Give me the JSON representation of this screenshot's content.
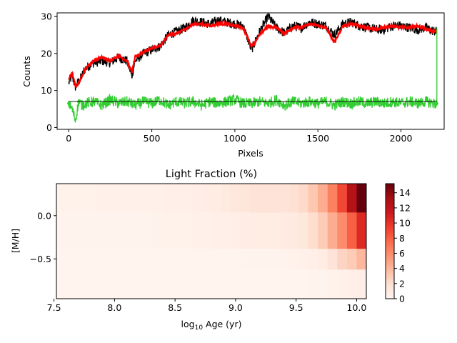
{
  "chart_data": [
    {
      "type": "line",
      "title": "",
      "xlabel": "Pixels",
      "ylabel": "Counts",
      "xlim": [
        -70,
        2260
      ],
      "ylim": [
        -0.5,
        31
      ],
      "xticks": [
        0,
        500,
        1000,
        1500,
        2000
      ],
      "yticks": [
        0,
        10,
        20,
        30
      ],
      "grid": false,
      "legend": "none",
      "series": [
        {
          "role": "observed spectrum",
          "color": "#000000",
          "x": [
            0,
            20,
            40,
            60,
            80,
            100,
            150,
            200,
            250,
            300,
            350,
            380,
            400,
            450,
            500,
            550,
            600,
            650,
            700,
            750,
            800,
            850,
            900,
            950,
            1000,
            1050,
            1100,
            1150,
            1200,
            1250,
            1300,
            1350,
            1400,
            1450,
            1500,
            1550,
            1600,
            1650,
            1700,
            1750,
            1800,
            1850,
            1900,
            1950,
            2000,
            2050,
            2100,
            2150,
            2200,
            2215
          ],
          "y": [
            12,
            14,
            11,
            12.5,
            14,
            16,
            17.5,
            18,
            17.5,
            19,
            18,
            14,
            18,
            20,
            21,
            22,
            25,
            26,
            27,
            29,
            28.5,
            28,
            29,
            28.5,
            28,
            27.5,
            21,
            26,
            30,
            27,
            25.5,
            27.5,
            27,
            28.5,
            28,
            27.5,
            25,
            28,
            28.5,
            27.5,
            27,
            26.5,
            26.5,
            27.5,
            27.5,
            27,
            26.5,
            27,
            26,
            26
          ]
        },
        {
          "role": "model fit",
          "color": "#ff0000",
          "x": [
            0,
            20,
            40,
            60,
            80,
            100,
            150,
            200,
            250,
            300,
            350,
            380,
            400,
            450,
            500,
            550,
            600,
            650,
            700,
            750,
            800,
            850,
            900,
            950,
            1000,
            1050,
            1100,
            1150,
            1200,
            1250,
            1300,
            1350,
            1400,
            1450,
            1500,
            1550,
            1600,
            1650,
            1700,
            1750,
            1800,
            1850,
            1900,
            1950,
            2000,
            2050,
            2100,
            2150,
            2200,
            2215
          ],
          "y": [
            13,
            15,
            11,
            12,
            14,
            16,
            18,
            19,
            18,
            19.5,
            18,
            15,
            19,
            20.5,
            21.5,
            22,
            25,
            25.5,
            26.5,
            28,
            28,
            27.5,
            28,
            28,
            27.5,
            27,
            22,
            25,
            27.5,
            27,
            25.5,
            27,
            27,
            28,
            27.5,
            27,
            23,
            27.5,
            28,
            27.5,
            27,
            26.5,
            27,
            27.5,
            27,
            27,
            27.5,
            26.5,
            26,
            26
          ]
        },
        {
          "role": "residuals",
          "color": "#32cd32",
          "x": [
            0,
            20,
            40,
            60,
            80,
            100,
            150,
            200,
            250,
            300,
            350,
            400,
            450,
            500,
            550,
            600,
            650,
            700,
            750,
            800,
            850,
            900,
            950,
            1000,
            1050,
            1100,
            1150,
            1200,
            1250,
            1300,
            1350,
            1400,
            1450,
            1500,
            1550,
            1600,
            1650,
            1700,
            1750,
            1800,
            1850,
            1900,
            1950,
            2000,
            2050,
            2100,
            2150,
            2200,
            2215,
            2216,
            2220
          ],
          "y": [
            6.5,
            5,
            2,
            7,
            6,
            6.5,
            7,
            6,
            7.5,
            6.5,
            7,
            6,
            7,
            6.5,
            7.5,
            6,
            7,
            6.5,
            7,
            6,
            7,
            6.5,
            7,
            7.5,
            6.5,
            6.5,
            7,
            6.5,
            7.5,
            6,
            7,
            6.5,
            7,
            6.5,
            7,
            6,
            7,
            6.5,
            7,
            6.5,
            7,
            6.5,
            7,
            6.5,
            7,
            6.5,
            7,
            6.5,
            6.5,
            27,
            27
          ]
        },
        {
          "role": "reference level",
          "color": "#000000",
          "x": [
            0,
            2215
          ],
          "y": [
            7,
            7
          ]
        }
      ]
    },
    {
      "type": "heatmap",
      "title": "Light Fraction (%)",
      "xlabel": "log₁₀ Age (yr)",
      "ylabel": "[M/H]",
      "xticks": [
        7.5,
        8.0,
        8.5,
        9.0,
        9.5,
        10.0
      ],
      "yticks": [
        0.0,
        -0.5
      ],
      "xtick_labels": [
        "7.5",
        "8.0",
        "8.5",
        "9.0",
        "9.5",
        "10.0"
      ],
      "ytick_labels": [
        "0.0",
        "−0.5"
      ],
      "x_edges": [
        7.52,
        7.6,
        7.68,
        7.76,
        7.84,
        7.92,
        8.0,
        8.08,
        8.16,
        8.24,
        8.32,
        8.4,
        8.48,
        8.56,
        8.64,
        8.72,
        8.8,
        8.88,
        8.96,
        9.04,
        9.12,
        9.2,
        9.28,
        9.36,
        9.44,
        9.52,
        9.6,
        9.68,
        9.76,
        9.84,
        9.92,
        10.0,
        10.08
      ],
      "y_edges": [
        -0.96,
        -0.62,
        -0.38,
        0.04,
        0.37
      ],
      "values": [
        [
          0.1,
          0.1,
          0.1,
          0.1,
          0.1,
          0.1,
          0.1,
          0.1,
          0.1,
          0.1,
          0.1,
          0.1,
          0.1,
          0.1,
          0.1,
          0.1,
          0.1,
          0.1,
          0.1,
          0.1,
          0.1,
          0.1,
          0.1,
          0.1,
          0.1,
          0.1,
          0.2,
          0.2,
          0.3,
          0.4,
          0.5,
          0.6
        ],
        [
          0.1,
          0.1,
          0.1,
          0.1,
          0.1,
          0.1,
          0.1,
          0.1,
          0.1,
          0.1,
          0.1,
          0.1,
          0.1,
          0.1,
          0.1,
          0.1,
          0.1,
          0.1,
          0.1,
          0.2,
          0.2,
          0.2,
          0.2,
          0.2,
          0.3,
          0.4,
          0.5,
          0.8,
          1.5,
          2.5,
          3.0,
          4.0
        ],
        [
          0.2,
          0.2,
          0.2,
          0.2,
          0.2,
          0.2,
          0.2,
          0.2,
          0.2,
          0.2,
          0.3,
          0.3,
          0.3,
          0.3,
          0.4,
          0.4,
          0.5,
          0.5,
          0.6,
          0.7,
          0.7,
          0.8,
          0.8,
          0.9,
          1.0,
          1.3,
          2.0,
          3.0,
          4.5,
          6.0,
          8.0,
          10.5
        ],
        [
          0.3,
          0.3,
          0.3,
          0.3,
          0.4,
          0.4,
          0.4,
          0.4,
          0.4,
          0.4,
          0.4,
          0.5,
          0.5,
          0.5,
          0.6,
          0.7,
          0.8,
          1.0,
          1.2,
          1.4,
          1.5,
          1.6,
          1.5,
          1.5,
          1.8,
          2.2,
          3.2,
          4.5,
          6.5,
          9.0,
          12.5,
          15.2
        ]
      ],
      "colorbar": {
        "cmap": "Reds",
        "vmin": 0,
        "vmax": 15.2,
        "ticks": [
          0,
          2,
          4,
          6,
          8,
          10,
          12,
          14
        ],
        "tick_labels": [
          "0",
          "2",
          "4",
          "6",
          "8",
          "10",
          "12",
          "14"
        ]
      }
    }
  ]
}
